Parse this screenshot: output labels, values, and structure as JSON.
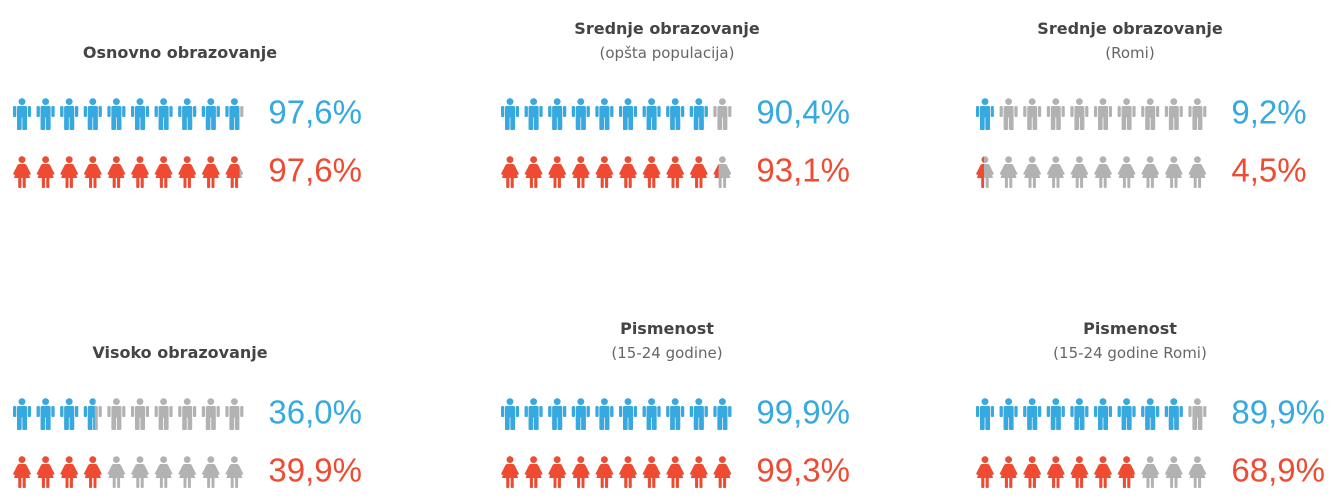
{
  "chart_data": [
    {
      "type": "pictograph",
      "title": "Osnovno obrazovanje",
      "values": [
        97.6,
        97.6
      ],
      "value_labels": [
        "97,6%",
        "97,6%"
      ],
      "colors": [
        "#36a9e1",
        "#ef4b32"
      ],
      "empty_color": "#b2b2b2",
      "xlim": [
        0,
        100
      ],
      "icons": 10
    },
    {
      "type": "pictograph",
      "title": "Srednje obrazovanje",
      "subtitle": "(opšta populacija)",
      "values": [
        90.4,
        93.1
      ],
      "value_labels": [
        "90,4%",
        "93,1%"
      ],
      "colors": [
        "#36a9e1",
        "#ef4b32"
      ],
      "empty_color": "#b2b2b2",
      "xlim": [
        0,
        100
      ],
      "icons": 10
    },
    {
      "type": "pictograph",
      "title": "Srednje obrazovanje",
      "subtitle": "(Romi)",
      "values": [
        9.2,
        4.5
      ],
      "value_labels": [
        "9,2%",
        "4,5%"
      ],
      "colors": [
        "#36a9e1",
        "#ef4b32"
      ],
      "empty_color": "#b2b2b2",
      "xlim": [
        0,
        100
      ],
      "icons": 10
    },
    {
      "type": "pictograph",
      "title": "Visoko obrazovanje",
      "values": [
        36.0,
        39.9
      ],
      "value_labels": [
        "36,0%",
        "39,9%"
      ],
      "colors": [
        "#36a9e1",
        "#ef4b32"
      ],
      "empty_color": "#b2b2b2",
      "xlim": [
        0,
        100
      ],
      "icons": 10
    },
    {
      "type": "pictograph",
      "title": "Pismenost",
      "subtitle": "(15-24 godine)",
      "values": [
        99.9,
        99.3
      ],
      "value_labels": [
        "99,9%",
        "99,3%"
      ],
      "colors": [
        "#36a9e1",
        "#ef4b32"
      ],
      "empty_color": "#b2b2b2",
      "xlim": [
        0,
        100
      ],
      "icons": 10
    },
    {
      "type": "pictograph",
      "title": "Pismenost",
      "subtitle": "(15-24 godine Romi)",
      "values": [
        89.9,
        68.9
      ],
      "value_labels": [
        "89,9%",
        "68,9%"
      ],
      "colors": [
        "#36a9e1",
        "#ef4b32"
      ],
      "empty_color": "#b2b2b2",
      "xlim": [
        0,
        100
      ],
      "icons": 10
    }
  ]
}
